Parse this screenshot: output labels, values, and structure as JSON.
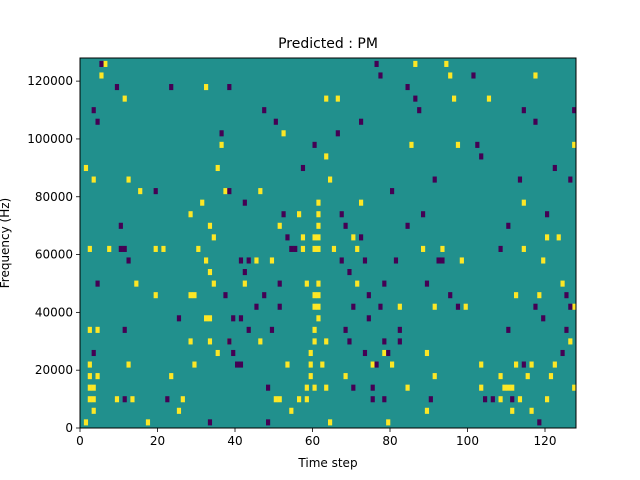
{
  "chart_data": {
    "type": "heatmap",
    "title": "Predicted : PM",
    "xlabel": "Time step",
    "ylabel": "Frequency (Hz)",
    "xlim": [
      0,
      128
    ],
    "ylim": [
      0,
      128000
    ],
    "x_ticks": [
      0,
      20,
      40,
      60,
      80,
      100,
      120
    ],
    "y_ticks": [
      0,
      20000,
      40000,
      60000,
      80000,
      100000,
      120000
    ],
    "x_tick_labels": [
      "0",
      "20",
      "40",
      "60",
      "80",
      "100",
      "120"
    ],
    "y_tick_labels": [
      "0",
      "20000",
      "40000",
      "60000",
      "80000",
      "100000",
      "120000"
    ],
    "grid_rows": 64,
    "grid_cols": 128,
    "colormap": "viridis",
    "colors": {
      "background": "#21908d",
      "high": "#fde725",
      "low": "#440154"
    },
    "cells": {
      "high": [
        [
          61,
          78000
        ],
        [
          61,
          74000
        ],
        [
          61,
          70000
        ],
        [
          61,
          66000
        ],
        [
          61,
          62000
        ],
        [
          61,
          50000
        ],
        [
          61,
          46000
        ],
        [
          61,
          42000
        ],
        [
          61,
          38000
        ],
        [
          60,
          66000
        ],
        [
          60,
          62000
        ],
        [
          60,
          46000
        ],
        [
          60,
          42000
        ],
        [
          60,
          34000
        ],
        [
          60,
          30000
        ],
        [
          60,
          14000
        ],
        [
          59,
          26000
        ],
        [
          59,
          22000
        ],
        [
          59,
          18000
        ],
        [
          58,
          14000
        ],
        [
          58,
          10000
        ],
        [
          57,
          66000
        ],
        [
          57,
          62000
        ],
        [
          63,
          30000
        ],
        [
          63,
          14000
        ],
        [
          62,
          22000
        ],
        [
          2,
          22000
        ],
        [
          2,
          18000
        ],
        [
          2,
          14000
        ],
        [
          2,
          10000
        ],
        [
          3,
          14000
        ],
        [
          3,
          10000
        ],
        [
          4,
          18000
        ],
        [
          3,
          6000
        ],
        [
          2,
          62000
        ],
        [
          5,
          122000
        ],
        [
          6,
          126000
        ],
        [
          1,
          90000
        ],
        [
          3,
          86000
        ],
        [
          11,
          114000
        ],
        [
          12,
          22000
        ],
        [
          13,
          10000
        ],
        [
          15,
          82000
        ],
        [
          17,
          2000
        ],
        [
          19,
          62000
        ],
        [
          21,
          62000
        ],
        [
          19,
          46000
        ],
        [
          23,
          18000
        ],
        [
          25,
          6000
        ],
        [
          26,
          10000
        ],
        [
          28,
          30000
        ],
        [
          28,
          46000
        ],
        [
          29,
          46000
        ],
        [
          29,
          22000
        ],
        [
          28,
          74000
        ],
        [
          30,
          62000
        ],
        [
          31,
          78000
        ],
        [
          32,
          118000
        ],
        [
          32,
          58000
        ],
        [
          32,
          38000
        ],
        [
          33,
          38000
        ],
        [
          33,
          30000
        ],
        [
          33,
          54000
        ],
        [
          34,
          50000
        ],
        [
          34,
          66000
        ],
        [
          35,
          26000
        ],
        [
          35,
          90000
        ],
        [
          36,
          98000
        ],
        [
          37,
          82000
        ],
        [
          38,
          30000
        ],
        [
          33,
          70000
        ],
        [
          42,
          50000
        ],
        [
          45,
          58000
        ],
        [
          46,
          30000
        ],
        [
          46,
          82000
        ],
        [
          49,
          58000
        ],
        [
          50,
          10000
        ],
        [
          51,
          10000
        ],
        [
          51,
          70000
        ],
        [
          52,
          102000
        ],
        [
          53,
          22000
        ],
        [
          54,
          6000
        ],
        [
          56,
          10000
        ],
        [
          56,
          74000
        ],
        [
          58,
          50000
        ],
        [
          64,
          2000
        ],
        [
          65,
          62000
        ],
        [
          64,
          86000
        ],
        [
          63,
          94000
        ],
        [
          63,
          114000
        ],
        [
          66,
          114000
        ],
        [
          68,
          18000
        ],
        [
          70,
          66000
        ],
        [
          71,
          62000
        ],
        [
          71,
          50000
        ],
        [
          72,
          78000
        ],
        [
          75,
          22000
        ],
        [
          78,
          26000
        ],
        [
          79,
          2000
        ],
        [
          80,
          22000
        ],
        [
          82,
          42000
        ],
        [
          84,
          14000
        ],
        [
          85,
          98000
        ],
        [
          86,
          126000
        ],
        [
          88,
          62000
        ],
        [
          89,
          26000
        ],
        [
          89,
          6000
        ],
        [
          91,
          18000
        ],
        [
          91,
          42000
        ],
        [
          93,
          62000
        ],
        [
          94,
          126000
        ],
        [
          95,
          122000
        ],
        [
          96,
          114000
        ],
        [
          97,
          98000
        ],
        [
          98,
          58000
        ],
        [
          99,
          42000
        ],
        [
          103,
          22000
        ],
        [
          103,
          14000
        ],
        [
          105,
          114000
        ],
        [
          108,
          10000
        ],
        [
          108,
          18000
        ],
        [
          109,
          14000
        ],
        [
          110,
          14000
        ],
        [
          111,
          14000
        ],
        [
          111,
          6000
        ],
        [
          112,
          22000
        ],
        [
          112,
          46000
        ],
        [
          113,
          10000
        ],
        [
          114,
          62000
        ],
        [
          114,
          78000
        ],
        [
          115,
          18000
        ],
        [
          116,
          6000
        ],
        [
          116,
          22000
        ],
        [
          117,
          122000
        ],
        [
          118,
          46000
        ],
        [
          119,
          58000
        ],
        [
          120,
          10000
        ],
        [
          120,
          66000
        ],
        [
          121,
          18000
        ],
        [
          122,
          22000
        ],
        [
          123,
          66000
        ],
        [
          124,
          50000
        ],
        [
          126,
          30000
        ],
        [
          127,
          14000
        ],
        [
          127,
          42000
        ],
        [
          127,
          98000
        ],
        [
          2,
          34000
        ],
        [
          4,
          34000
        ],
        [
          1,
          2000
        ],
        [
          7,
          62000
        ],
        [
          9,
          10000
        ],
        [
          12,
          86000
        ],
        [
          14,
          50000
        ]
      ],
      "low": [
        [
          5,
          126000
        ],
        [
          3,
          110000
        ],
        [
          4,
          106000
        ],
        [
          9,
          118000
        ],
        [
          10,
          70000
        ],
        [
          10,
          62000
        ],
        [
          11,
          62000
        ],
        [
          12,
          58000
        ],
        [
          4,
          50000
        ],
        [
          3,
          26000
        ],
        [
          11,
          34000
        ],
        [
          11,
          10000
        ],
        [
          19,
          82000
        ],
        [
          22,
          10000
        ],
        [
          23,
          118000
        ],
        [
          25,
          38000
        ],
        [
          33,
          2000
        ],
        [
          36,
          102000
        ],
        [
          37,
          46000
        ],
        [
          38,
          118000
        ],
        [
          38,
          82000
        ],
        [
          38,
          30000
        ],
        [
          39,
          38000
        ],
        [
          39,
          26000
        ],
        [
          40,
          22000
        ],
        [
          41,
          22000
        ],
        [
          41,
          58000
        ],
        [
          41,
          38000
        ],
        [
          42,
          78000
        ],
        [
          42,
          54000
        ],
        [
          43,
          58000
        ],
        [
          43,
          34000
        ],
        [
          45,
          42000
        ],
        [
          47,
          110000
        ],
        [
          47,
          46000
        ],
        [
          48,
          14000
        ],
        [
          48,
          2000
        ],
        [
          49,
          34000
        ],
        [
          50,
          106000
        ],
        [
          51,
          42000
        ],
        [
          51,
          50000
        ],
        [
          52,
          74000
        ],
        [
          53,
          66000
        ],
        [
          54,
          62000
        ],
        [
          55,
          62000
        ],
        [
          57,
          90000
        ],
        [
          60,
          98000
        ],
        [
          66,
          102000
        ],
        [
          67,
          74000
        ],
        [
          68,
          70000
        ],
        [
          67,
          58000
        ],
        [
          69,
          54000
        ],
        [
          68,
          34000
        ],
        [
          69,
          30000
        ],
        [
          70,
          42000
        ],
        [
          70,
          14000
        ],
        [
          72,
          106000
        ],
        [
          72,
          66000
        ],
        [
          73,
          58000
        ],
        [
          73,
          26000
        ],
        [
          74,
          46000
        ],
        [
          74,
          38000
        ],
        [
          75,
          10000
        ],
        [
          75,
          14000
        ],
        [
          76,
          22000
        ],
        [
          76,
          126000
        ],
        [
          77,
          122000
        ],
        [
          77,
          42000
        ],
        [
          78,
          30000
        ],
        [
          78,
          50000
        ],
        [
          78,
          10000
        ],
        [
          79,
          26000
        ],
        [
          80,
          82000
        ],
        [
          81,
          58000
        ],
        [
          82,
          34000
        ],
        [
          82,
          30000
        ],
        [
          84,
          70000
        ],
        [
          84,
          118000
        ],
        [
          86,
          114000
        ],
        [
          87,
          110000
        ],
        [
          88,
          74000
        ],
        [
          89,
          50000
        ],
        [
          90,
          10000
        ],
        [
          91,
          86000
        ],
        [
          92,
          58000
        ],
        [
          93,
          58000
        ],
        [
          95,
          46000
        ],
        [
          97,
          42000
        ],
        [
          101,
          122000
        ],
        [
          102,
          98000
        ],
        [
          103,
          94000
        ],
        [
          104,
          10000
        ],
        [
          106,
          10000
        ],
        [
          108,
          62000
        ],
        [
          110,
          70000
        ],
        [
          110,
          34000
        ],
        [
          111,
          10000
        ],
        [
          113,
          86000
        ],
        [
          114,
          110000
        ],
        [
          114,
          22000
        ],
        [
          117,
          106000
        ],
        [
          117,
          42000
        ],
        [
          118,
          2000
        ],
        [
          120,
          74000
        ],
        [
          122,
          90000
        ],
        [
          124,
          26000
        ],
        [
          125,
          46000
        ],
        [
          126,
          42000
        ],
        [
          125,
          34000
        ],
        [
          127,
          110000
        ],
        [
          126,
          86000
        ],
        [
          119,
          38000
        ]
      ]
    }
  }
}
